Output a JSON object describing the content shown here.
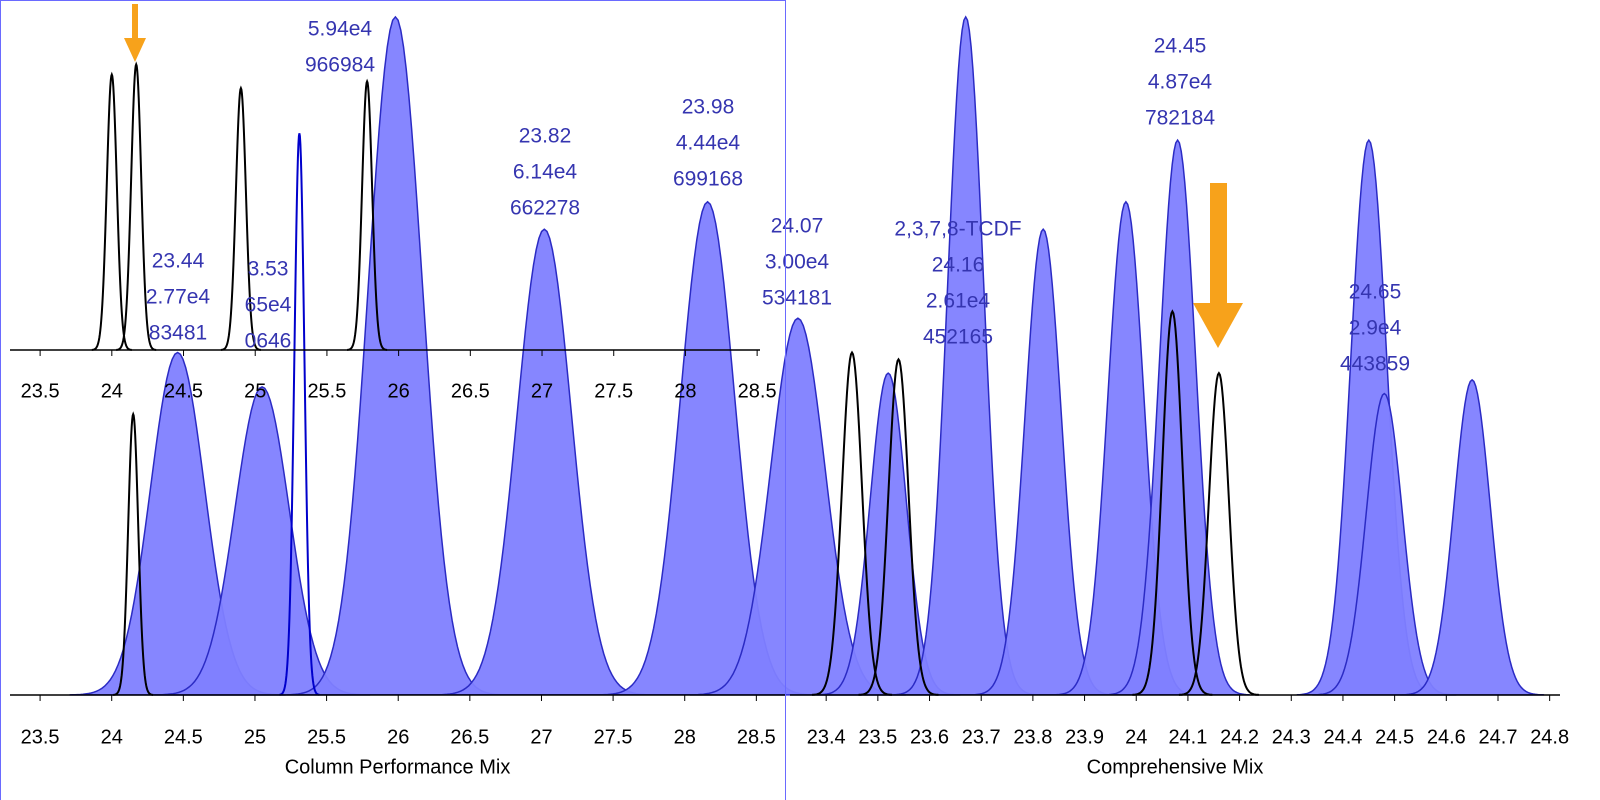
{
  "chart_data": [
    {
      "type": "peaks",
      "xlim": [
        23.29,
        28.52
      ],
      "xticks": [
        23.5,
        24,
        24.5,
        25,
        25.5,
        26,
        26.5,
        27,
        27.5,
        28,
        28.5
      ],
      "ylim": [
        0,
        100
      ],
      "series": [
        {
          "color": "#000000",
          "x": [
            24.0,
            24.17,
            24.9,
            25.78
          ],
          "values": [
            81,
            84,
            77,
            79
          ]
        }
      ]
    },
    {
      "type": "peaks",
      "xlabel": "Column Performance Mix",
      "xlim": [
        23.29,
        28.7
      ],
      "xticks": [
        23.5,
        24,
        24.5,
        25,
        25.5,
        26,
        26.5,
        27,
        27.5,
        28,
        28.5
      ],
      "ylim": [
        0,
        100
      ],
      "series": [
        {
          "color": "#8080ff",
          "filled": true,
          "x": [
            24.46,
            25.05,
            25.98,
            27.02,
            28.16,
            28.79
          ],
          "values": [
            50,
            45,
            99,
            68,
            72,
            55
          ]
        },
        {
          "color": "#000000",
          "x": [
            24.15
          ],
          "values": [
            41
          ]
        },
        {
          "color": "#0000cc",
          "x": [
            25.31
          ],
          "values": [
            82
          ]
        }
      ]
    },
    {
      "type": "peaks",
      "xlabel": "Comprehensive Mix",
      "xlim": [
        23.33,
        24.82
      ],
      "xticks": [
        23.4,
        23.5,
        23.6,
        23.7,
        23.8,
        23.9,
        24,
        24.1,
        24.2,
        24.3,
        24.4,
        24.5,
        24.6,
        24.7,
        24.8
      ],
      "ylim": [
        0,
        100
      ],
      "series": [
        {
          "color": "#8080ff",
          "filled": true,
          "x": [
            23.52,
            23.67,
            23.82,
            23.98,
            24.08,
            24.45,
            24.48,
            24.65
          ],
          "values": [
            47,
            99,
            68,
            72,
            81,
            81,
            44,
            46
          ]
        },
        {
          "color": "#000000",
          "x": [
            23.45,
            23.54,
            24.07,
            24.16
          ],
          "values": [
            50,
            49,
            56,
            47
          ]
        }
      ]
    }
  ],
  "annotations": [
    [
      "23.44",
      "2.77e4",
      "83481"
    ],
    [
      "3.53",
      "65e4",
      "0646"
    ],
    [
      "5.94e4",
      "966984"
    ],
    [
      "23.82",
      "6.14e4",
      "662278"
    ],
    [
      "23.98",
      "4.44e4",
      "699168"
    ],
    [
      "24.07",
      "3.00e4",
      "534181"
    ],
    [
      "2,3,7,8-TCDF",
      "24.16",
      "2.61e4",
      "452165"
    ],
    [
      "24.45",
      "4.87e4",
      "782184"
    ],
    [
      "24.65",
      "2.9e4",
      "443859"
    ]
  ]
}
